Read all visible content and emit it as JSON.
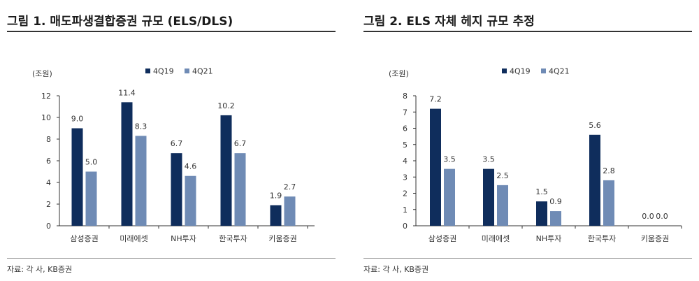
{
  "colors": {
    "series1": "#0f2d5c",
    "series2": "#6f8bb5",
    "axis": "#333333",
    "rule": "#333333"
  },
  "panels": [
    {
      "title": "그림 1. 매도파생결합증권 규모 (ELS/DLS)",
      "source": "자료: 각 사, KB증권",
      "chart_data": {
        "type": "bar",
        "title": "그림 1. 매도파생결합증권 규모 (ELS/DLS)",
        "unit": "(조원)",
        "categories": [
          "삼성증권",
          "미래에셋",
          "NH투자",
          "한국투자",
          "키움증권"
        ],
        "series": [
          {
            "name": "4Q19",
            "values": [
              9.0,
              11.4,
              6.7,
              10.2,
              1.9
            ]
          },
          {
            "name": "4Q21",
            "values": [
              5.0,
              8.3,
              4.6,
              6.7,
              2.7
            ]
          }
        ],
        "ylim": [
          0,
          12
        ],
        "yticks": [
          0,
          2,
          4,
          6,
          8,
          10,
          12
        ],
        "grid": false,
        "legend": "top-left"
      }
    },
    {
      "title": "그림 2. ELS 자체 헤지 규모 추정",
      "source": "자료: 각 사, KB증권",
      "chart_data": {
        "type": "bar",
        "title": "그림 2. ELS 자체 헤지 규모 추정",
        "unit": "(조원)",
        "categories": [
          "삼성증권",
          "미래에셋",
          "NH투자",
          "한국투자",
          "키움증권"
        ],
        "series": [
          {
            "name": "4Q19",
            "values": [
              7.2,
              3.5,
              1.5,
              5.6,
              0.0
            ]
          },
          {
            "name": "4Q21",
            "values": [
              3.5,
              2.5,
              0.9,
              2.8,
              0.0
            ]
          }
        ],
        "ylim": [
          0,
          8
        ],
        "yticks": [
          0,
          1,
          2,
          3,
          4,
          5,
          6,
          7,
          8
        ],
        "grid": false,
        "legend": "top-left"
      }
    }
  ]
}
